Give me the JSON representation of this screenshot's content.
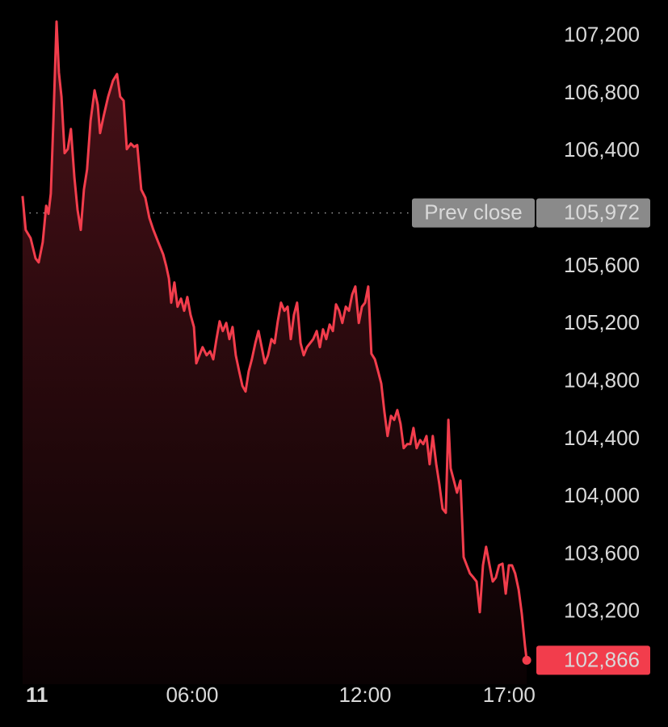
{
  "chart_data": {
    "type": "line",
    "color": "#f23d4c",
    "x": [
      0.11,
      0.22,
      0.39,
      0.56,
      0.67,
      0.81,
      0.93,
      1.01,
      1.09,
      1.18,
      1.29,
      1.37,
      1.46,
      1.57,
      1.68,
      1.79,
      1.91,
      2.02,
      2.13,
      2.24,
      2.35,
      2.47,
      2.61,
      2.72,
      2.8,
      2.92,
      3.08,
      3.25,
      3.39,
      3.5,
      3.62,
      3.73,
      3.87,
      3.98,
      4.09,
      4.23,
      4.37,
      4.51,
      4.65,
      4.82,
      4.99,
      5.1,
      5.19,
      5.27,
      5.38,
      5.49,
      5.61,
      5.72,
      5.83,
      5.94,
      6.06,
      6.14,
      6.25,
      6.36,
      6.5,
      6.62,
      6.73,
      6.84,
      6.95,
      7.06,
      7.18,
      7.29,
      7.4,
      7.51,
      7.63,
      7.74,
      7.85,
      7.96,
      8.07,
      8.19,
      8.3,
      8.41,
      8.52,
      8.63,
      8.75,
      8.86,
      8.97,
      9.08,
      9.2,
      9.31,
      9.42,
      9.53,
      9.64,
      9.76,
      9.87,
      9.98,
      10.09,
      10.2,
      10.32,
      10.43,
      10.54,
      10.65,
      10.77,
      10.88,
      10.99,
      11.1,
      11.21,
      11.33,
      11.44,
      11.55,
      11.66,
      11.78,
      11.89,
      12.0,
      12.11,
      12.22,
      12.34,
      12.45,
      12.56,
      12.67,
      12.78,
      12.9,
      13.01,
      13.12,
      13.23,
      13.34,
      13.46,
      13.57,
      13.68,
      13.79,
      13.91,
      14.02,
      14.13,
      14.24,
      14.35,
      14.47,
      14.58,
      14.69,
      14.8,
      14.89,
      14.97,
      15.08,
      15.19,
      15.31,
      15.42,
      15.53,
      15.64,
      15.76,
      15.87,
      15.98,
      16.09,
      16.2,
      16.32,
      16.43,
      16.54,
      16.65,
      16.77,
      16.88,
      16.99,
      17.1,
      17.21,
      17.33,
      17.44,
      17.55,
      17.61
    ],
    "values": [
      106089,
      105854,
      105797,
      105657,
      105629,
      105769,
      106022,
      105966,
      106106,
      106611,
      107301,
      106948,
      106779,
      106387,
      106415,
      106555,
      106218,
      105994,
      105854,
      106134,
      106274,
      106611,
      106824,
      106723,
      106527,
      106639,
      106779,
      106891,
      106936,
      106779,
      106751,
      106415,
      106454,
      106431,
      106443,
      106134,
      106078,
      105938,
      105854,
      105769,
      105685,
      105601,
      105517,
      105349,
      105489,
      105321,
      105377,
      105293,
      105388,
      105265,
      105180,
      104928,
      104984,
      105040,
      104984,
      105012,
      104956,
      105096,
      105220,
      105152,
      105208,
      105096,
      105180,
      104984,
      104872,
      104771,
      104732,
      104872,
      104956,
      105068,
      105152,
      105040,
      104928,
      104984,
      105096,
      105068,
      105220,
      105349,
      105293,
      105321,
      105096,
      105265,
      105349,
      105068,
      104984,
      105040,
      105068,
      105096,
      105152,
      105040,
      105164,
      105096,
      105197,
      105152,
      105337,
      105293,
      105208,
      105321,
      105293,
      105405,
      105461,
      105208,
      105321,
      105349,
      105461,
      104995,
      104956,
      104872,
      104788,
      104591,
      104423,
      104563,
      104535,
      104603,
      104507,
      104339,
      104367,
      104367,
      104479,
      104339,
      104395,
      104367,
      104423,
      104227,
      104423,
      104227,
      104086,
      103918,
      103890,
      104535,
      104199,
      104114,
      104030,
      104114,
      103582,
      103525,
      103469,
      103441,
      103413,
      103200,
      103525,
      103654,
      103525,
      103413,
      103441,
      103525,
      103537,
      103329,
      103525,
      103525,
      103469,
      103357,
      103189,
      102964,
      102866
    ],
    "xlim": [
      0,
      18
    ],
    "ylim": [
      102700,
      107400
    ],
    "xticks": [
      {
        "value": 0,
        "label": "11"
      },
      {
        "value": 6,
        "label": "06:00"
      },
      {
        "value": 12,
        "label": "12:00"
      },
      {
        "value": 17,
        "label": "17:00"
      }
    ],
    "yticks": [
      {
        "value": 103200,
        "label": "103,200"
      },
      {
        "value": 103600,
        "label": "103,600"
      },
      {
        "value": 104000,
        "label": "104,000"
      },
      {
        "value": 104400,
        "label": "104,400"
      },
      {
        "value": 104800,
        "label": "104,800"
      },
      {
        "value": 105200,
        "label": "105,200"
      },
      {
        "value": 105600,
        "label": "105,600"
      },
      {
        "value": 106400,
        "label": "106,400"
      },
      {
        "value": 106800,
        "label": "106,800"
      },
      {
        "value": 107200,
        "label": "107,200"
      }
    ],
    "prev_close": {
      "text": "Prev close",
      "value": 105972,
      "label": "105,972"
    },
    "last_price": {
      "value": 102866,
      "label": "102,866"
    }
  }
}
